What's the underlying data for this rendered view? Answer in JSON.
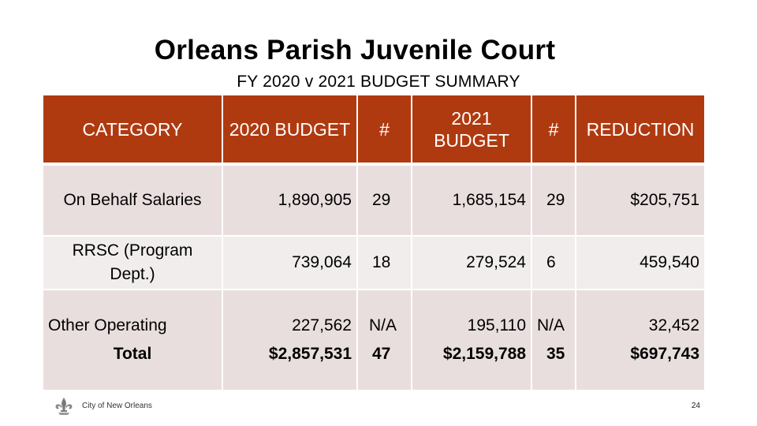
{
  "slide": {
    "title": "Orleans Parish Juvenile Court",
    "subtitle": "FY 2020 v 2021 BUDGET SUMMARY"
  },
  "table": {
    "headers": [
      "CATEGORY",
      "2020 BUDGET",
      "#",
      "2021 BUDGET",
      "#",
      "REDUCTION"
    ],
    "rows": [
      {
        "category": "On Behalf Salaries",
        "budget_2020": "1,890,905",
        "count_2020": "29",
        "budget_2021": "1,685,154",
        "count_2021": "29",
        "reduction": "$205,751"
      },
      {
        "category": "RRSC (Program Dept.)",
        "budget_2020": "739,064",
        "count_2020": "18",
        "budget_2021": "279,524",
        "count_2021": "6",
        "reduction": "459,540"
      },
      {
        "category": "Other Operating",
        "budget_2020": "227,562",
        "count_2020": "N/A",
        "budget_2021": "195,110",
        "count_2021": "N/A",
        "reduction": "32,452"
      },
      {
        "category": "Total",
        "budget_2020": "$2,857,531",
        "count_2020": "47",
        "budget_2021": "$2,159,788",
        "count_2021": "35",
        "reduction": "$697,743"
      }
    ]
  },
  "footer": {
    "org": "City of New Orleans",
    "page": "24",
    "logo_icon": "fleur-de-lis-icon"
  },
  "colors": {
    "header_bg": "#b03a10",
    "row_bg": "#e9dede"
  }
}
